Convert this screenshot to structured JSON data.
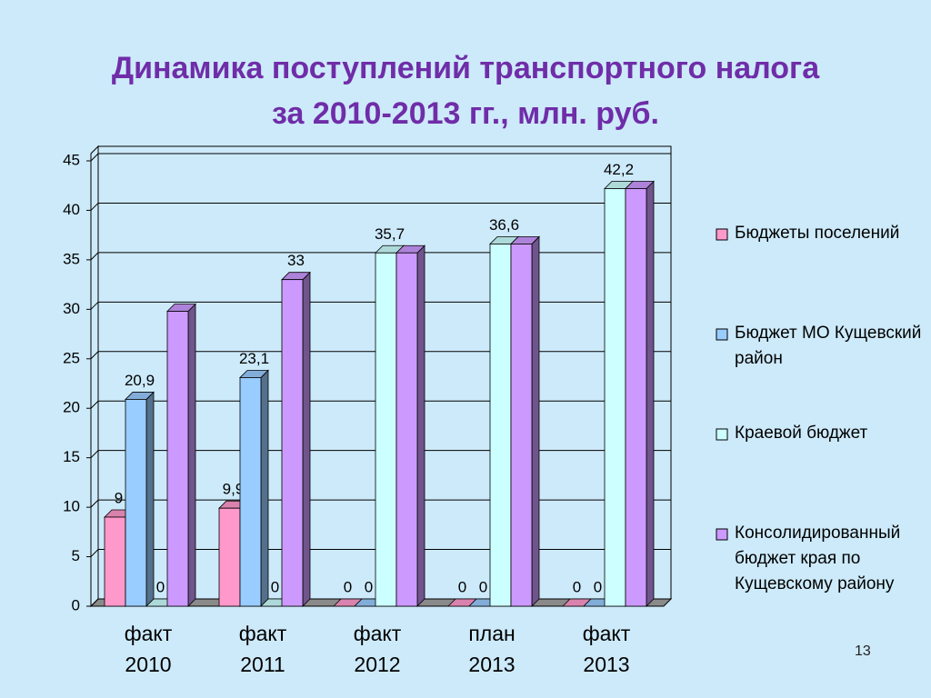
{
  "chart_data": {
    "type": "bar3d",
    "title": "Динамика поступлений транспортного налога за 2010-2013 гг., млн. руб.",
    "categories": [
      "факт 2010",
      "факт 2011",
      "факт 2012",
      "план 2013",
      "факт 2013"
    ],
    "series": [
      {
        "name": "Бюджеты поселений",
        "color": "#ff99cc",
        "values": [
          9,
          9.9,
          0,
          0,
          0
        ],
        "value_labels": [
          "9",
          "9,9",
          "0",
          "0",
          "0"
        ]
      },
      {
        "name": "Бюджет МО Кущевский район",
        "color": "#99ccff",
        "values": [
          20.9,
          23.1,
          0,
          0,
          0
        ],
        "value_labels": [
          "20,9",
          "23,1",
          "0",
          "0",
          "0"
        ]
      },
      {
        "name": "Краевой бюджет",
        "color": "#ccffff",
        "values": [
          0,
          0,
          35.7,
          36.6,
          42.2
        ],
        "value_labels": [
          "0",
          "0",
          "35,7",
          "36,6",
          "42,2"
        ]
      },
      {
        "name": "Консолидированный бюджет края по Кущевскому району",
        "color": "#cc99ff",
        "values": [
          29.8,
          33,
          35.7,
          36.6,
          42.2
        ],
        "value_labels": [
          null,
          "33",
          null,
          null,
          null
        ]
      }
    ],
    "ylim": [
      0,
      45
    ],
    "yticks": [
      0,
      5,
      10,
      15,
      20,
      25,
      30,
      35,
      40,
      45
    ],
    "grid": true,
    "legend": "right",
    "slide_number": "13"
  }
}
